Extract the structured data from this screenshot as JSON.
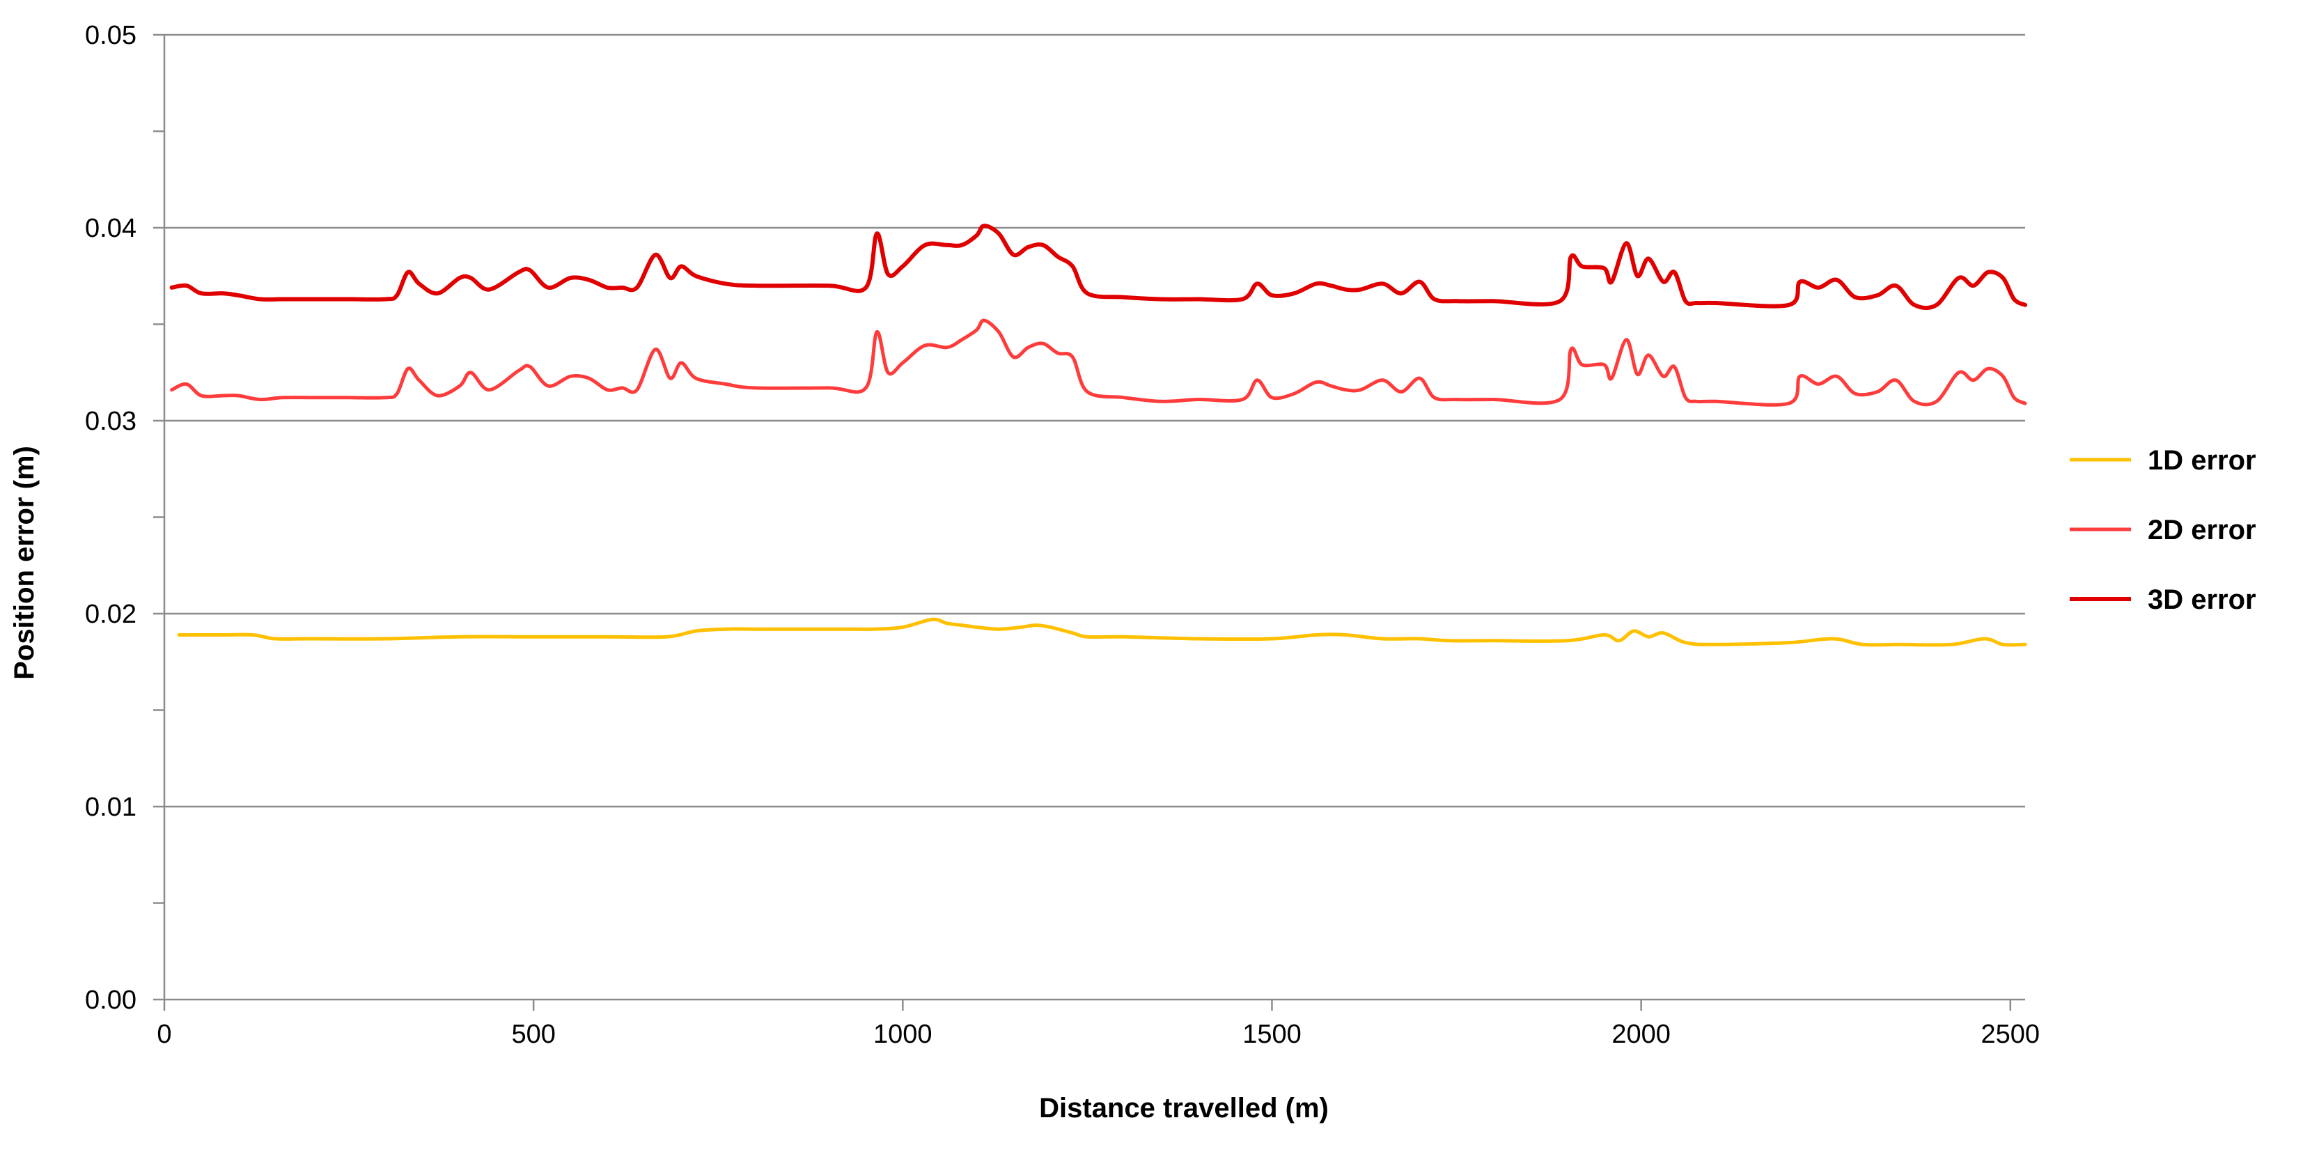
{
  "chart_data": {
    "type": "line",
    "title": "",
    "xlabel": "Distance travelled (m)",
    "ylabel": "Position error (m)",
    "xlim": [
      0,
      2520
    ],
    "ylim": [
      0.0,
      0.05
    ],
    "x_ticks": [
      0,
      500,
      1000,
      1500,
      2000,
      2500
    ],
    "x_tick_labels": [
      "0",
      "500",
      "1000",
      "1500",
      "2000",
      "2500"
    ],
    "y_ticks": [
      0.0,
      0.01,
      0.02,
      0.03,
      0.04,
      0.05
    ],
    "y_tick_labels": [
      "0.00",
      "0.01",
      "0.02",
      "0.03",
      "0.04",
      "0.05"
    ],
    "y_minor_ticks": [
      0.005,
      0.015,
      0.025,
      0.035,
      0.045
    ],
    "grid": "horizontal major",
    "legend_position": "right",
    "series": [
      {
        "name": "1D error",
        "color": "#ffc000",
        "width": 5,
        "x": [
          20,
          80,
          120,
          150,
          200,
          300,
          400,
          500,
          600,
          680,
          720,
          760,
          800,
          900,
          960,
          1000,
          1040,
          1060,
          1080,
          1100,
          1130,
          1160,
          1180,
          1200,
          1230,
          1250,
          1300,
          1400,
          1500,
          1560,
          1600,
          1650,
          1700,
          1740,
          1800,
          1900,
          1950,
          1970,
          1990,
          2010,
          2030,
          2060,
          2100,
          2200,
          2260,
          2300,
          2350,
          2420,
          2465,
          2490,
          2520
        ],
        "y": [
          0.0189,
          0.0189,
          0.0189,
          0.0187,
          0.0187,
          0.0187,
          0.0188,
          0.0188,
          0.0188,
          0.0188,
          0.0191,
          0.0192,
          0.0192,
          0.0192,
          0.0192,
          0.0193,
          0.0197,
          0.0195,
          0.0194,
          0.0193,
          0.0192,
          0.0193,
          0.0194,
          0.0193,
          0.019,
          0.0188,
          0.0188,
          0.0187,
          0.0187,
          0.0189,
          0.0189,
          0.0187,
          0.0187,
          0.0186,
          0.0186,
          0.0186,
          0.0189,
          0.0186,
          0.0191,
          0.0188,
          0.019,
          0.0185,
          0.0184,
          0.0185,
          0.0187,
          0.0184,
          0.0184,
          0.0184,
          0.0187,
          0.0184,
          0.0184
        ]
      },
      {
        "name": "2D error",
        "color": "#ff3c3c",
        "width": 5,
        "x": [
          10,
          30,
          50,
          80,
          100,
          130,
          160,
          200,
          250,
          300,
          315,
          330,
          345,
          370,
          400,
          415,
          440,
          480,
          495,
          520,
          550,
          575,
          600,
          620,
          640,
          665,
          685,
          700,
          720,
          760,
          800,
          900,
          950,
          965,
          980,
          1000,
          1030,
          1060,
          1080,
          1100,
          1110,
          1130,
          1150,
          1170,
          1190,
          1210,
          1230,
          1250,
          1300,
          1350,
          1400,
          1460,
          1480,
          1500,
          1530,
          1560,
          1580,
          1600,
          1620,
          1650,
          1675,
          1700,
          1720,
          1750,
          1800,
          1890,
          1905,
          1920,
          1950,
          1960,
          1980,
          1995,
          2010,
          2030,
          2045,
          2060,
          2075,
          2100,
          2200,
          2215,
          2240,
          2265,
          2290,
          2320,
          2345,
          2370,
          2400,
          2430,
          2450,
          2470,
          2490,
          2505,
          2520
        ],
        "y": [
          0.0316,
          0.0319,
          0.0313,
          0.0313,
          0.0313,
          0.0311,
          0.0312,
          0.0312,
          0.0312,
          0.0312,
          0.0314,
          0.0327,
          0.0321,
          0.0313,
          0.0318,
          0.0325,
          0.0316,
          0.0326,
          0.0328,
          0.0318,
          0.0323,
          0.0322,
          0.0316,
          0.0317,
          0.0316,
          0.0337,
          0.0322,
          0.033,
          0.0322,
          0.0319,
          0.0317,
          0.0317,
          0.0317,
          0.0346,
          0.0325,
          0.033,
          0.0339,
          0.0338,
          0.0342,
          0.0347,
          0.0352,
          0.0346,
          0.0333,
          0.0338,
          0.034,
          0.0335,
          0.0333,
          0.0315,
          0.0312,
          0.031,
          0.0311,
          0.0311,
          0.0321,
          0.0312,
          0.0314,
          0.032,
          0.0318,
          0.0316,
          0.0316,
          0.0321,
          0.0315,
          0.0322,
          0.0312,
          0.0311,
          0.0311,
          0.0311,
          0.0337,
          0.0329,
          0.0329,
          0.0322,
          0.0342,
          0.0324,
          0.0334,
          0.0323,
          0.0328,
          0.0312,
          0.031,
          0.031,
          0.0309,
          0.0323,
          0.0319,
          0.0323,
          0.0314,
          0.0315,
          0.0321,
          0.031,
          0.031,
          0.0325,
          0.0321,
          0.0327,
          0.0323,
          0.0312,
          0.0309
        ]
      },
      {
        "name": "3D error",
        "color": "#e00000",
        "width": 6,
        "x": [
          10,
          30,
          50,
          80,
          100,
          130,
          160,
          200,
          250,
          300,
          315,
          330,
          345,
          370,
          400,
          415,
          440,
          480,
          495,
          520,
          550,
          575,
          600,
          620,
          640,
          665,
          685,
          700,
          720,
          760,
          800,
          900,
          950,
          965,
          980,
          1000,
          1030,
          1060,
          1080,
          1100,
          1110,
          1130,
          1150,
          1170,
          1190,
          1210,
          1230,
          1250,
          1300,
          1350,
          1400,
          1460,
          1480,
          1500,
          1530,
          1560,
          1580,
          1600,
          1620,
          1650,
          1675,
          1700,
          1720,
          1750,
          1800,
          1890,
          1905,
          1920,
          1950,
          1960,
          1980,
          1995,
          2010,
          2030,
          2045,
          2060,
          2075,
          2100,
          2200,
          2215,
          2240,
          2265,
          2290,
          2320,
          2345,
          2370,
          2400,
          2430,
          2450,
          2470,
          2490,
          2505,
          2520
        ],
        "y": [
          0.0369,
          0.037,
          0.0366,
          0.0366,
          0.0365,
          0.0363,
          0.0363,
          0.0363,
          0.0363,
          0.0363,
          0.0365,
          0.0377,
          0.0371,
          0.0366,
          0.0374,
          0.0374,
          0.0368,
          0.0377,
          0.0378,
          0.0369,
          0.0374,
          0.0373,
          0.0369,
          0.0369,
          0.0369,
          0.0386,
          0.0374,
          0.038,
          0.0375,
          0.0371,
          0.037,
          0.037,
          0.0369,
          0.0397,
          0.0376,
          0.038,
          0.0391,
          0.0391,
          0.0391,
          0.0396,
          0.0401,
          0.0397,
          0.0386,
          0.039,
          0.0391,
          0.0385,
          0.038,
          0.0366,
          0.0364,
          0.0363,
          0.0363,
          0.0363,
          0.0371,
          0.0365,
          0.0366,
          0.0371,
          0.037,
          0.0368,
          0.0368,
          0.0371,
          0.0366,
          0.0372,
          0.0363,
          0.0362,
          0.0362,
          0.0362,
          0.0385,
          0.038,
          0.0379,
          0.0372,
          0.0392,
          0.0375,
          0.0384,
          0.0372,
          0.0377,
          0.0362,
          0.0361,
          0.0361,
          0.036,
          0.0372,
          0.0369,
          0.0373,
          0.0364,
          0.0365,
          0.037,
          0.036,
          0.036,
          0.0374,
          0.037,
          0.0377,
          0.0374,
          0.0363,
          0.036
        ]
      }
    ]
  }
}
